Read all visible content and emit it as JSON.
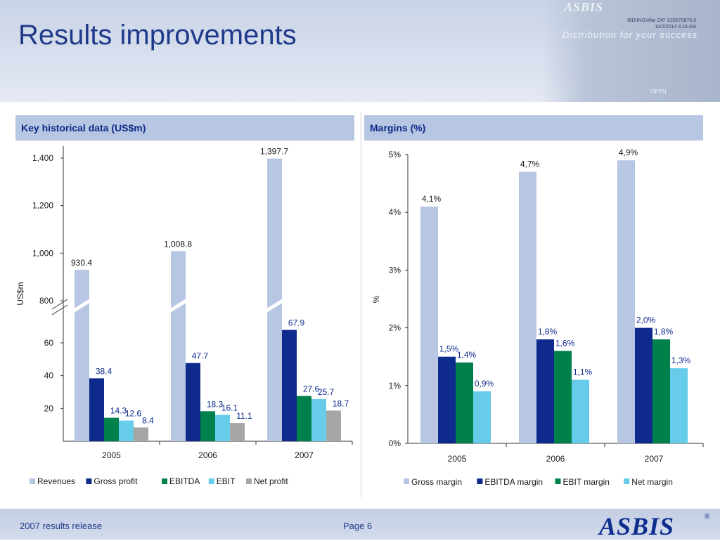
{
  "slide": {
    "title": "Results improvements",
    "file_stamp_line1": "IBD\\ING\\War O\\P X20070876.9",
    "file_stamp_line2": "10/2/2014 3:18 AM",
    "brand_top": "ASBIS",
    "brand_tagline": "Distribution for your success",
    "photo_sign": "OPEN",
    "footer_left": "2007 results release",
    "footer_page": "Page 6",
    "footer_logo": "ASBIS",
    "footer_reg": "®"
  },
  "colors": {
    "title": "#1f3a8a",
    "panel_header_bg": "#b7c6e2",
    "revenues": "#b7c6e2",
    "gross_profit": "#0d2a8c",
    "ebitda": "#00804a",
    "ebit": "#66ccea",
    "net_profit": "#a6a6a6"
  },
  "chart_data": [
    {
      "type": "bar",
      "title": "Key historical data (US$m)",
      "ylabel": "US$m",
      "xlabel": "",
      "categories": [
        "2005",
        "2006",
        "2007"
      ],
      "axis_break": true,
      "lower_ylim": [
        0,
        75
      ],
      "upper_ylim": [
        800,
        1450
      ],
      "lower_ticks": [
        "20",
        "40",
        "60"
      ],
      "upper_ticks": [
        "800",
        "1,000",
        "1,200",
        "1,400"
      ],
      "legend_position": "bottom",
      "series": [
        {
          "name": "Revenues",
          "color": "#b7c6e2",
          "values": [
            930.4,
            1008.8,
            1397.7
          ],
          "labels": [
            "930.4",
            "1,008.8",
            "1,397.7"
          ],
          "scale": "upper"
        },
        {
          "name": "Gross profit",
          "color": "#0d2a8c",
          "values": [
            38.4,
            47.7,
            67.9
          ],
          "labels": [
            "38.4",
            "47.7",
            "67.9"
          ],
          "scale": "lower"
        },
        {
          "name": "EBITDA",
          "color": "#00804a",
          "values": [
            14.3,
            18.3,
            27.6
          ],
          "labels": [
            "14.3",
            "18.3",
            "27.6"
          ],
          "scale": "lower"
        },
        {
          "name": "EBIT",
          "color": "#66ccea",
          "values": [
            12.6,
            16.1,
            25.7
          ],
          "labels": [
            "12.6",
            "16.1",
            "25.7"
          ],
          "scale": "lower"
        },
        {
          "name": "Net profit",
          "color": "#a6a6a6",
          "values": [
            8.4,
            11.1,
            18.7
          ],
          "labels": [
            "8.4",
            "11.1",
            "18.7"
          ],
          "scale": "lower"
        }
      ]
    },
    {
      "type": "bar",
      "title": "Margins (%)",
      "ylabel": "%",
      "xlabel": "",
      "categories": [
        "2005",
        "2006",
        "2007"
      ],
      "ylim": [
        0,
        5
      ],
      "ticks": [
        "0%",
        "1%",
        "2%",
        "3%",
        "4%",
        "5%"
      ],
      "legend_position": "bottom",
      "series": [
        {
          "name": "Gross margin",
          "color": "#b7c6e2",
          "values": [
            4.1,
            4.7,
            4.9
          ],
          "labels": [
            "4,1%",
            "4,7%",
            "4,9%"
          ]
        },
        {
          "name": "EBITDA margin",
          "color": "#0d2a8c",
          "values": [
            1.5,
            1.8,
            2.0
          ],
          "labels": [
            "1,5%",
            "1,8%",
            "2,0%"
          ]
        },
        {
          "name": "EBIT margin",
          "color": "#00804a",
          "values": [
            1.4,
            1.6,
            1.8
          ],
          "labels": [
            "1,4%",
            "1,6%",
            "1,8%"
          ]
        },
        {
          "name": "Net margin",
          "color": "#66ccea",
          "values": [
            0.9,
            1.1,
            1.3
          ],
          "labels": [
            "0,9%",
            "1,1%",
            "1,3%"
          ]
        }
      ]
    }
  ]
}
